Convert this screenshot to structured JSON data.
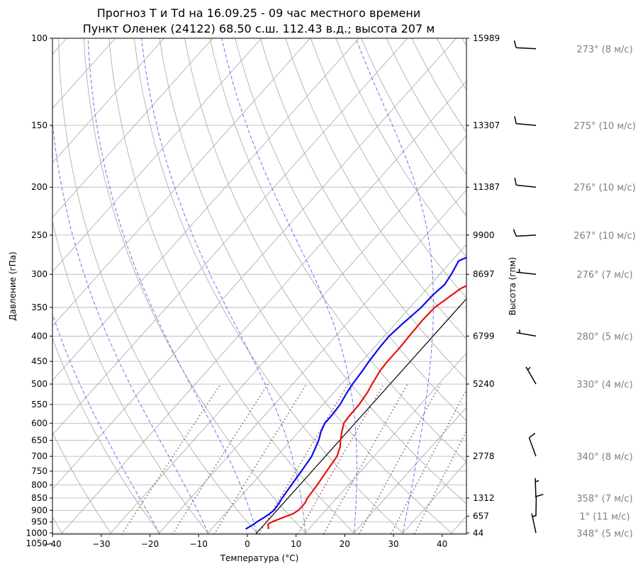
{
  "chart_data": {
    "type": "line",
    "title_line1": "Прогноз T и Td на 16.09.25 - 09 час местного времени",
    "title_line2": "Пункт Оленек (24122) 68.50 с.ш. 112.43 в.д.; высота 207 м",
    "xlabel": "Температура (°C)",
    "ylabel": "Давление (гПа)",
    "ylabel_right": "Высота (гпм)",
    "xlim": [
      -40,
      45
    ],
    "ylim": [
      1050,
      100
    ],
    "y_scale": "log",
    "x_ticks": [
      "−40",
      "−30",
      "−20",
      "−10",
      "0",
      "10",
      "20",
      "30",
      "40"
    ],
    "p_ticks": [
      "100",
      "150",
      "200",
      "250",
      "300",
      "350",
      "400",
      "450",
      "500",
      "550",
      "600",
      "650",
      "700",
      "750",
      "800",
      "850",
      "900",
      "950",
      "1000",
      "1050"
    ],
    "height_ticks": [
      {
        "p": 100,
        "label": "15989"
      },
      {
        "p": 150,
        "label": "13307"
      },
      {
        "p": 200,
        "label": "11387"
      },
      {
        "p": 250,
        "label": "9900"
      },
      {
        "p": 300,
        "label": "8697"
      },
      {
        "p": 400,
        "label": "6799"
      },
      {
        "p": 500,
        "label": "5240"
      },
      {
        "p": 700,
        "label": "2778"
      },
      {
        "p": 850,
        "label": "1312"
      },
      {
        "p": 925,
        "label": "657"
      },
      {
        "p": 1000,
        "label": "44"
      }
    ],
    "series": [
      {
        "name": "T",
        "color": "#e8110f",
        "points": [
          [
            982,
            1.7
          ],
          [
            960,
            0.7
          ],
          [
            950,
            1.1
          ],
          [
            930,
            2.6
          ],
          [
            915,
            3.9
          ],
          [
            900,
            4.4
          ],
          [
            870,
            4.4
          ],
          [
            850,
            4.0
          ],
          [
            800,
            3.6
          ],
          [
            750,
            3.0
          ],
          [
            700,
            2.4
          ],
          [
            670,
            1.3
          ],
          [
            650,
            0.2
          ],
          [
            625,
            -1.1
          ],
          [
            600,
            -2.3
          ],
          [
            580,
            -2.5
          ],
          [
            550,
            -2.6
          ],
          [
            520,
            -3.1
          ],
          [
            500,
            -3.7
          ],
          [
            470,
            -4.5
          ],
          [
            450,
            -4.7
          ],
          [
            420,
            -4.7
          ],
          [
            400,
            -4.9
          ],
          [
            370,
            -5.1
          ],
          [
            350,
            -4.9
          ],
          [
            335,
            -4.0
          ],
          [
            320,
            -3.0
          ],
          [
            300,
            0.7
          ],
          [
            280,
            4.5
          ],
          [
            265,
            8.0
          ],
          [
            250,
            11.6
          ],
          [
            235,
            15.3
          ],
          [
            222,
            18.8
          ],
          [
            214,
            20.5
          ],
          [
            200,
            23.1
          ],
          [
            185,
            25.6
          ],
          [
            170,
            28.1
          ],
          [
            155,
            30.8
          ],
          [
            140,
            34.1
          ],
          [
            125,
            37.8
          ],
          [
            117,
            40.4
          ]
        ]
      },
      {
        "name": "Td",
        "color": "#0a0bf3",
        "points": [
          [
            982,
            -3.0
          ],
          [
            960,
            -2.2
          ],
          [
            950,
            -2.0
          ],
          [
            930,
            -1.3
          ],
          [
            910,
            -0.8
          ],
          [
            900,
            -0.6
          ],
          [
            870,
            -0.9
          ],
          [
            850,
            -1.2
          ],
          [
            800,
            -1.7
          ],
          [
            750,
            -2.2
          ],
          [
            700,
            -2.8
          ],
          [
            650,
            -4.3
          ],
          [
            625,
            -5.4
          ],
          [
            600,
            -6.2
          ],
          [
            580,
            -6.2
          ],
          [
            550,
            -6.5
          ],
          [
            520,
            -7.3
          ],
          [
            500,
            -7.7
          ],
          [
            470,
            -8.1
          ],
          [
            450,
            -8.5
          ],
          [
            420,
            -8.9
          ],
          [
            400,
            -9.0
          ],
          [
            380,
            -8.6
          ],
          [
            350,
            -7.7
          ],
          [
            330,
            -7.6
          ],
          [
            315,
            -7.1
          ],
          [
            300,
            -7.6
          ],
          [
            285,
            -8.4
          ],
          [
            282,
            -8.6
          ],
          [
            278,
            -7.7
          ],
          [
            270,
            -5.6
          ],
          [
            262,
            -2.5
          ],
          [
            250,
            -0.7
          ],
          [
            237,
            0.9
          ],
          [
            226,
            2.0
          ],
          [
            213,
            3.1
          ],
          [
            200,
            4.9
          ],
          [
            185,
            6.7
          ],
          [
            170,
            8.6
          ],
          [
            155,
            10.5
          ],
          [
            150,
            11.4
          ],
          [
            140,
            13.6
          ],
          [
            125,
            17.5
          ],
          [
            115,
            20.6
          ],
          [
            105,
            24.2
          ],
          [
            100,
            26.7
          ]
        ]
      }
    ],
    "winds": [
      {
        "p": 105,
        "dir": 273,
        "speed": 8,
        "label": "273° (8 м/с)"
      },
      {
        "p": 150,
        "dir": 275,
        "speed": 10,
        "label": "275° (10 м/с)"
      },
      {
        "p": 200,
        "dir": 276,
        "speed": 10,
        "label": "276° (10 м/с)"
      },
      {
        "p": 250,
        "dir": 267,
        "speed": 10,
        "label": "267° (10 м/с)"
      },
      {
        "p": 300,
        "dir": 276,
        "speed": 7,
        "label": "276° (7 м/с)"
      },
      {
        "p": 400,
        "dir": 280,
        "speed": 5,
        "label": "280° (5 м/с)"
      },
      {
        "p": 500,
        "dir": 330,
        "speed": 4,
        "label": "330° (4 м/с)"
      },
      {
        "p": 700,
        "dir": 340,
        "speed": 8,
        "label": "340° (8 м/с)"
      },
      {
        "p": 850,
        "dir": 358,
        "speed": 7,
        "label": "358° (7 м/с)"
      },
      {
        "p": 925,
        "dir": 1,
        "speed": 11,
        "label": "1° (11 м/с)"
      },
      {
        "p": 1000,
        "dir": 348,
        "speed": 5,
        "label": "348° (5 м/с)"
      }
    ],
    "colors": {
      "temperature": "#e8110f",
      "dewpoint": "#0a0bf3",
      "dry_adiabat": "#a6a6a6",
      "moist_adiabat": "#6f6ff2",
      "mixing_ratio": "#8b5a3c",
      "isotherm_zero": "#000000",
      "grid": "#b0b0b0",
      "wind_label": "#7f7f7f"
    },
    "grid": true
  }
}
